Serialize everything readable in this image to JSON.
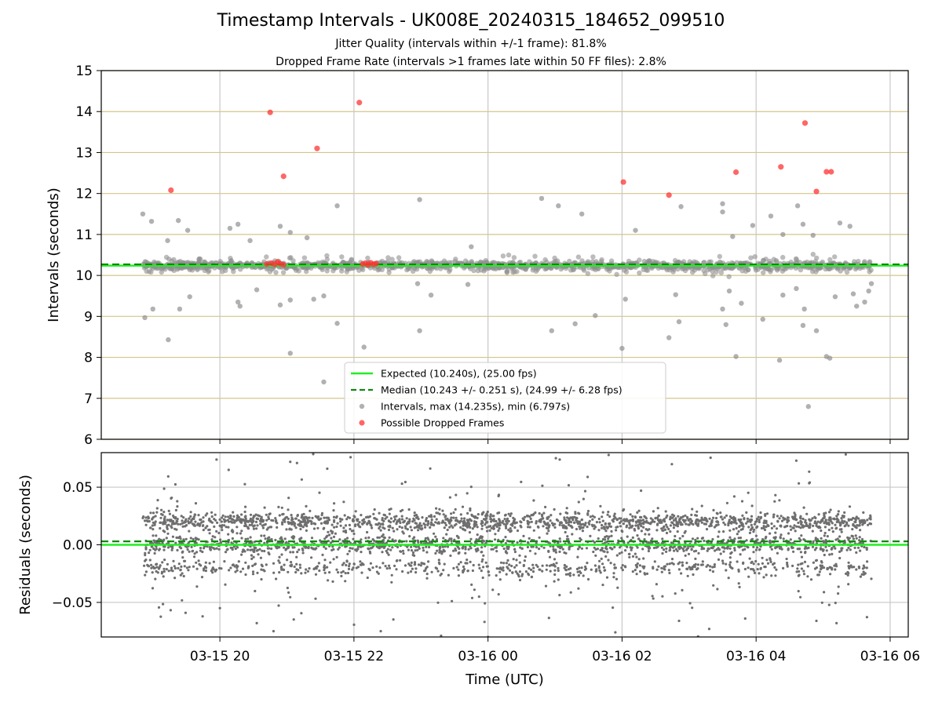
{
  "chart_data": [
    {
      "type": "scatter",
      "title": "Timestamp Intervals - UK008E_20240315_184652_099510",
      "subtitle_lines": [
        "Jitter Quality (intervals within +/-1 frame): 81.8%",
        "Dropped Frame Rate (intervals >1 frames late within 50 FF files): 2.8%"
      ],
      "xlabel": "",
      "ylabel": "Intervals (seconds)",
      "x_range": [
        "2024-03-15T18:14",
        "2024-03-16T06:16"
      ],
      "xlim_hours": [
        18.23,
        30.27
      ],
      "ylim": [
        6,
        15
      ],
      "y_ticks": [
        "6",
        "7",
        "8",
        "9",
        "10",
        "11",
        "12",
        "13",
        "14",
        "15"
      ],
      "grid": "vertical gray at x ticks, horizontal gold at y ticks",
      "colors": {
        "expected": "#22ee22",
        "median": "#118811",
        "intervals": "#909090",
        "dropped": "#ff3333",
        "hgrid": "#d4c48a",
        "vgrid": "#c8c8c8"
      },
      "reference_lines": [
        {
          "name": "Expected (10.240s), (25.00 fps)",
          "y": 10.24,
          "style": "solid",
          "color": "#22ee22"
        },
        {
          "name": "Median (10.243 +/- 0.251 s), (24.99 +/- 6.28 fps)",
          "y": 10.243,
          "style": "dashed",
          "color": "#118811"
        }
      ],
      "legend": {
        "position": "bottom-center",
        "entries": [
          "Expected (10.240s), (25.00 fps)",
          "Median (10.243 +/- 0.251 s), (24.99 +/- 6.28 fps)",
          "Intervals, max (14.235s), min (6.797s)",
          "Possible Dropped Frames"
        ]
      },
      "series": [
        {
          "name": "Possible Dropped Frames",
          "points": [
            [
              19.27,
              12.08
            ],
            [
              20.75,
              13.98
            ],
            [
              20.95,
              12.42
            ],
            [
              21.45,
              13.1
            ],
            [
              22.08,
              14.22
            ],
            [
              20.7,
              10.28
            ],
            [
              20.77,
              10.3
            ],
            [
              20.82,
              10.27
            ],
            [
              20.86,
              10.33
            ],
            [
              20.9,
              10.29
            ],
            [
              20.95,
              10.26
            ],
            [
              22.13,
              10.28
            ],
            [
              22.17,
              10.3
            ],
            [
              22.21,
              10.26
            ],
            [
              22.25,
              10.31
            ],
            [
              22.29,
              10.27
            ],
            [
              22.33,
              10.29
            ],
            [
              26.02,
              12.28
            ],
            [
              26.7,
              11.96
            ],
            [
              27.7,
              12.52
            ],
            [
              28.37,
              12.65
            ],
            [
              28.73,
              13.72
            ],
            [
              28.9,
              12.05
            ],
            [
              29.05,
              12.53
            ],
            [
              29.12,
              12.53
            ]
          ]
        },
        {
          "name": "Intervals, max (14.235s), min (6.797s)",
          "points": [
            [
              18.85,
              11.5
            ],
            [
              18.98,
              11.32
            ],
            [
              19.22,
              10.85
            ],
            [
              19.38,
              11.34
            ],
            [
              19.52,
              11.1
            ],
            [
              20.15,
              11.15
            ],
            [
              20.27,
              11.25
            ],
            [
              20.45,
              10.85
            ],
            [
              20.9,
              11.2
            ],
            [
              21.05,
              11.05
            ],
            [
              21.3,
              10.92
            ],
            [
              21.75,
              11.7
            ],
            [
              22.98,
              11.85
            ],
            [
              23.75,
              10.7
            ],
            [
              24.8,
              11.88
            ],
            [
              25.05,
              11.7
            ],
            [
              25.4,
              11.5
            ],
            [
              26.2,
              11.1
            ],
            [
              26.88,
              11.68
            ],
            [
              27.5,
              11.55
            ],
            [
              27.5,
              11.75
            ],
            [
              27.65,
              10.95
            ],
            [
              27.95,
              11.22
            ],
            [
              28.22,
              11.45
            ],
            [
              28.4,
              11.0
            ],
            [
              28.62,
              11.7
            ],
            [
              28.7,
              11.25
            ],
            [
              28.85,
              10.98
            ],
            [
              29.25,
              11.28
            ],
            [
              29.4,
              11.2
            ],
            [
              18.88,
              8.97
            ],
            [
              19.0,
              9.18
            ],
            [
              19.23,
              8.43
            ],
            [
              19.4,
              9.18
            ],
            [
              19.55,
              9.48
            ],
            [
              20.27,
              9.35
            ],
            [
              20.3,
              9.25
            ],
            [
              20.55,
              9.65
            ],
            [
              20.9,
              9.28
            ],
            [
              21.05,
              9.4
            ],
            [
              21.4,
              9.42
            ],
            [
              21.55,
              9.5
            ],
            [
              21.75,
              8.83
            ],
            [
              21.05,
              8.1
            ],
            [
              21.55,
              7.4
            ],
            [
              22.15,
              8.25
            ],
            [
              22.95,
              9.8
            ],
            [
              23.15,
              9.52
            ],
            [
              22.98,
              8.65
            ],
            [
              23.7,
              9.78
            ],
            [
              24.95,
              8.65
            ],
            [
              25.3,
              8.82
            ],
            [
              25.6,
              9.02
            ],
            [
              26.0,
              8.22
            ],
            [
              26.05,
              9.42
            ],
            [
              26.7,
              8.48
            ],
            [
              26.8,
              9.53
            ],
            [
              26.85,
              8.87
            ],
            [
              27.5,
              9.18
            ],
            [
              27.55,
              8.8
            ],
            [
              27.6,
              9.62
            ],
            [
              27.7,
              8.02
            ],
            [
              27.78,
              9.32
            ],
            [
              28.1,
              8.93
            ],
            [
              28.35,
              7.93
            ],
            [
              28.4,
              9.52
            ],
            [
              28.6,
              9.68
            ],
            [
              28.7,
              8.78
            ],
            [
              28.72,
              9.18
            ],
            [
              28.78,
              6.8
            ],
            [
              28.9,
              8.65
            ],
            [
              29.05,
              8.02
            ],
            [
              29.1,
              7.98
            ],
            [
              29.18,
              9.48
            ],
            [
              29.45,
              9.55
            ],
            [
              29.5,
              9.25
            ],
            [
              29.62,
              9.35
            ],
            [
              29.68,
              9.62
            ],
            [
              29.72,
              9.8
            ]
          ]
        }
      ]
    },
    {
      "type": "scatter",
      "xlabel": "Time (UTC)",
      "ylabel": "Residuals (seconds)",
      "x_ticks": [
        "03-15 20",
        "03-15 22",
        "03-16 00",
        "03-16 02",
        "03-16 04",
        "03-16 06"
      ],
      "y_ticks": [
        "0.05",
        "0.00",
        "−0.05"
      ],
      "ylim": [
        -0.08,
        0.08
      ],
      "grid": "gray both",
      "reference_lines": [
        {
          "y": 0.0,
          "style": "solid",
          "color": "#22ee22"
        },
        {
          "y": 0.003,
          "style": "dashed",
          "color": "#118811"
        }
      ],
      "series": [
        {
          "dense_band": {
            "x_start": 18.85,
            "x_end": 29.72,
            "band_levels": [
              0.02,
              0.0,
              -0.02
            ],
            "spread": 0.015
          },
          "outliers": [
            [
              19.95,
              0.074
            ],
            [
              21.05,
              0.072
            ],
            [
              21.15,
              0.071
            ],
            [
              21.95,
              0.076
            ],
            [
              25.07,
              0.074
            ],
            [
              25.8,
              0.078
            ],
            [
              28.6,
              0.073
            ],
            [
              20.0,
              -0.055
            ],
            [
              20.55,
              -0.068
            ],
            [
              20.8,
              -0.075
            ],
            [
              22.4,
              -0.075
            ],
            [
              23.3,
              -0.079
            ],
            [
              24.0,
              -0.08
            ],
            [
              25.9,
              -0.076
            ],
            [
              26.85,
              -0.066
            ],
            [
              27.3,
              -0.073
            ],
            [
              28.9,
              -0.066
            ],
            [
              29.2,
              -0.068
            ]
          ]
        }
      ]
    }
  ]
}
